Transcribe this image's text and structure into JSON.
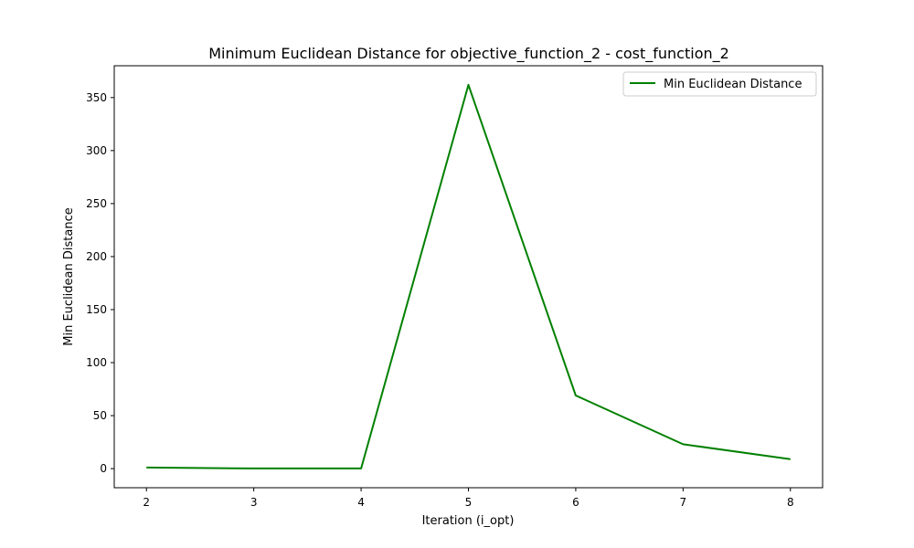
{
  "chart_data": {
    "type": "line",
    "title": "Minimum Euclidean Distance for objective_function_2 - cost_function_2",
    "xlabel": "Iteration (i_opt)",
    "ylabel": "Min Euclidean Distance",
    "x": [
      2,
      3,
      4,
      5,
      6,
      7,
      8
    ],
    "xticks": [
      "2",
      "3",
      "4",
      "5",
      "6",
      "7",
      "8"
    ],
    "yticks": [
      "0",
      "50",
      "100",
      "150",
      "200",
      "250",
      "300",
      "350"
    ],
    "xlim": [
      1.7,
      8.3
    ],
    "ylim": [
      -18,
      380
    ],
    "series": [
      {
        "name": "Min Euclidean Distance",
        "color": "#008000",
        "values": [
          1,
          0.2,
          0.2,
          362,
          69,
          23,
          9
        ]
      }
    ],
    "legend": "top-right",
    "grid": false
  }
}
